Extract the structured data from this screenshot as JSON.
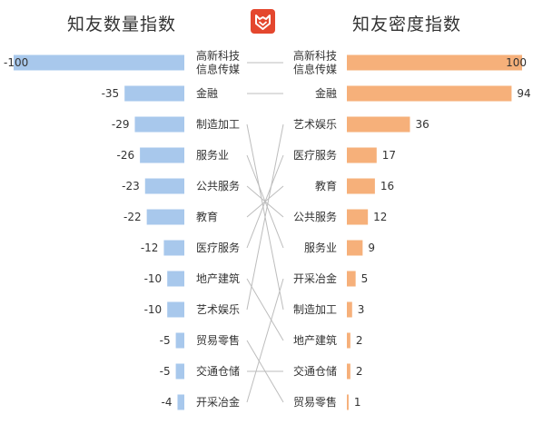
{
  "titles": {
    "left": "知友数量指数",
    "right": "知友密度指数"
  },
  "logo": {
    "icon": "zhihu-fox-logo",
    "color": "#e4472e"
  },
  "colors": {
    "left_bar": "#a8c8ec",
    "right_bar": "#f6b07a",
    "connector": "#bdbdbd",
    "text": "#333333"
  },
  "chart_data": [
    {
      "type": "bar",
      "orientation": "horizontal",
      "title": "知友数量指数",
      "categories": [
        "高新科技\n信息传媒",
        "金融",
        "制造加工",
        "服务业",
        "公共服务",
        "教育",
        "医疗服务",
        "地产建筑",
        "艺术娱乐",
        "贸易零售",
        "交通仓储",
        "开采冶金"
      ],
      "values": [
        -100,
        -35,
        -29,
        -26,
        -23,
        -22,
        -12,
        -10,
        -10,
        -5,
        -5,
        -4
      ],
      "xlim": [
        -100,
        0
      ]
    },
    {
      "type": "bar",
      "orientation": "horizontal",
      "title": "知友密度指数",
      "categories": [
        "高新科技\n信息传媒",
        "金融",
        "艺术娱乐",
        "医疗服务",
        "教育",
        "公共服务",
        "服务业",
        "开采冶金",
        "制造加工",
        "地产建筑",
        "交通仓储",
        "贸易零售"
      ],
      "values": [
        100,
        94,
        36,
        17,
        16,
        12,
        9,
        5,
        3,
        2,
        2,
        1
      ],
      "xlim": [
        0,
        100
      ]
    }
  ]
}
